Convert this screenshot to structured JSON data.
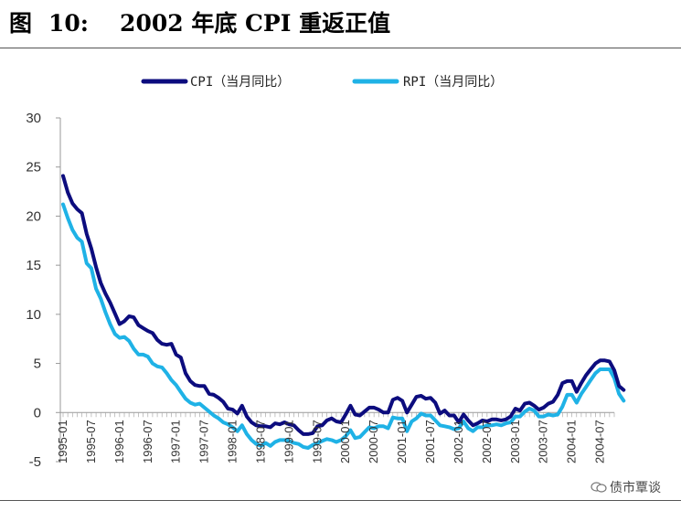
{
  "figure": {
    "label": "图",
    "number": "10:",
    "text": "2002 年底 CPI 重返正值"
  },
  "watermark": "债市覃谈",
  "chart_data": {
    "type": "line",
    "ylim": [
      -5,
      30
    ],
    "yticks": [
      -5,
      0,
      5,
      10,
      15,
      20,
      25,
      30
    ],
    "x_start": "1995-01",
    "x_end": "2004-10",
    "x_ticks": [
      "1995-01",
      "1995-07",
      "1996-01",
      "1996-07",
      "1997-01",
      "1997-07",
      "1998-01",
      "1998-07",
      "1999-01",
      "1999-07",
      "2000-01",
      "2000-07",
      "2001-01",
      "2001-07",
      "2002-01",
      "2002-07",
      "2003-01",
      "2003-07",
      "2004-01",
      "2004-07"
    ],
    "legend_position": "top-center",
    "grid": false,
    "series": [
      {
        "name": "CPI（当月同比）",
        "color": "#0c0c7e",
        "values": [
          24.1,
          22.4,
          21.3,
          20.7,
          20.3,
          18.2,
          16.7,
          14.8,
          13.2,
          12.1,
          11.2,
          10.1,
          9.0,
          9.3,
          9.8,
          9.7,
          8.9,
          8.6,
          8.3,
          8.1,
          7.4,
          7.0,
          6.9,
          7.0,
          5.9,
          5.6,
          4.0,
          3.2,
          2.8,
          2.7,
          2.7,
          1.9,
          1.8,
          1.5,
          1.1,
          0.4,
          0.3,
          -0.1,
          0.7,
          -0.4,
          -1.0,
          -1.3,
          -1.4,
          -1.4,
          -1.5,
          -1.1,
          -1.2,
          -1.0,
          -1.2,
          -1.3,
          -1.8,
          -2.2,
          -2.2,
          -2.1,
          -1.4,
          -1.3,
          -0.8,
          -0.6,
          -0.9,
          -1.0,
          -0.2,
          0.7,
          -0.2,
          -0.3,
          0.1,
          0.5,
          0.5,
          0.3,
          0.0,
          0.0,
          1.3,
          1.5,
          1.2,
          0.0,
          0.8,
          1.6,
          1.7,
          1.4,
          1.5,
          1.0,
          -0.1,
          0.2,
          -0.3,
          -0.3,
          -1.0,
          -0.2,
          -0.8,
          -1.3,
          -1.1,
          -0.8,
          -0.9,
          -0.7,
          -0.7,
          -0.8,
          -0.7,
          -0.4,
          0.4,
          0.2,
          0.9,
          1.0,
          0.7,
          0.3,
          0.5,
          0.9,
          1.1,
          1.8,
          3.0,
          3.2,
          3.2,
          2.1,
          3.0,
          3.8,
          4.4,
          5.0,
          5.3,
          5.3,
          5.2,
          4.3,
          2.7,
          2.3
        ]
      },
      {
        "name": "RPI（当月同比）",
        "color": "#1fb2e6",
        "values": [
          21.2,
          19.8,
          18.6,
          17.8,
          17.4,
          15.2,
          14.7,
          12.6,
          11.6,
          10.2,
          9.0,
          8.0,
          7.6,
          7.7,
          7.3,
          6.5,
          5.9,
          5.9,
          5.7,
          5.0,
          4.7,
          4.6,
          4.0,
          3.3,
          2.8,
          2.1,
          1.4,
          1.0,
          0.8,
          0.9,
          0.5,
          0.1,
          -0.3,
          -0.6,
          -1.0,
          -1.2,
          -1.5,
          -1.9,
          -1.3,
          -2.2,
          -2.8,
          -3.2,
          -3.4,
          -3.1,
          -3.4,
          -3.0,
          -2.8,
          -2.8,
          -2.9,
          -3.1,
          -3.2,
          -3.5,
          -3.6,
          -3.3,
          -3.1,
          -2.9,
          -2.7,
          -2.8,
          -3.0,
          -2.8,
          -2.4,
          -1.8,
          -2.6,
          -2.5,
          -2.0,
          -1.5,
          -1.6,
          -1.4,
          -1.4,
          -1.6,
          -0.5,
          -0.6,
          -0.6,
          -1.9,
          -0.9,
          -0.6,
          -0.1,
          -0.3,
          -0.3,
          -0.8,
          -1.3,
          -1.4,
          -1.5,
          -1.7,
          -1.6,
          -0.9,
          -1.6,
          -1.9,
          -1.5,
          -1.5,
          -1.3,
          -1.3,
          -1.2,
          -1.3,
          -1.1,
          -1.0,
          -0.4,
          -0.4,
          0.1,
          0.4,
          0.2,
          -0.4,
          -0.4,
          -0.2,
          -0.3,
          -0.2,
          0.6,
          1.8,
          1.8,
          1.0,
          1.9,
          2.6,
          3.3,
          4.0,
          4.4,
          4.4,
          4.4,
          3.5,
          1.9,
          1.2
        ]
      }
    ]
  }
}
